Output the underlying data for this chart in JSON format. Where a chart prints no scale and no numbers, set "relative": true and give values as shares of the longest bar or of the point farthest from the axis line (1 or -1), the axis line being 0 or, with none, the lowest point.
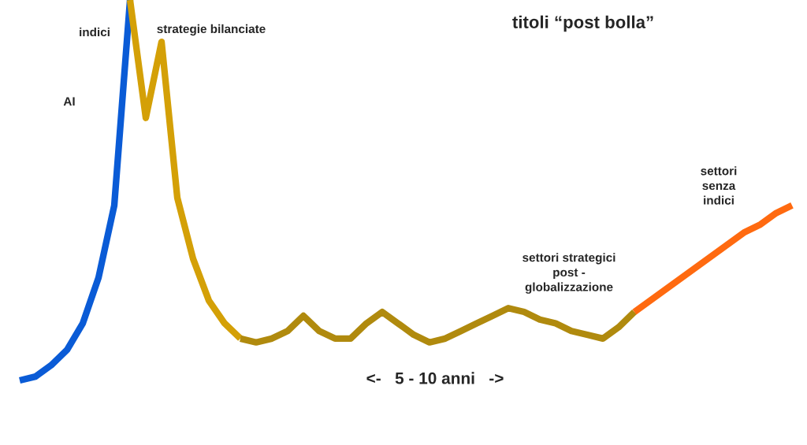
{
  "chart_data": {
    "type": "line",
    "relative": true,
    "legend": false,
    "grid": false,
    "marker": "none",
    "line_style": "solid",
    "categories": [
      null,
      null,
      null,
      null,
      null,
      null,
      null,
      null,
      null,
      null,
      null,
      null,
      null,
      null,
      null,
      null,
      null,
      null,
      null,
      null,
      null,
      null,
      null,
      null,
      null,
      null,
      null,
      null,
      null,
      null,
      null,
      null,
      null,
      null,
      null,
      null,
      null,
      null,
      null,
      null,
      null,
      null,
      null,
      null,
      null,
      null,
      null,
      null,
      null,
      null
    ],
    "series": [
      {
        "color": "#0a5bd6",
        "values": [
          0,
          0.01,
          0.04,
          0.08,
          0.15,
          0.27,
          0.46,
          1,
          null,
          null,
          null,
          null,
          null,
          null,
          null,
          null,
          null,
          null,
          null,
          null,
          null,
          null,
          null,
          null,
          null,
          null,
          null,
          null,
          null,
          null,
          null,
          null,
          null,
          null,
          null,
          null,
          null,
          null,
          null,
          null,
          null,
          null,
          null,
          null,
          null,
          null,
          null,
          null,
          null,
          null
        ]
      },
      {
        "color": "#d4a007",
        "values": [
          null,
          null,
          null,
          null,
          null,
          null,
          null,
          1,
          0.69,
          0.89,
          0.48,
          0.32,
          0.21,
          0.15,
          0.11,
          null,
          null,
          null,
          null,
          null,
          null,
          null,
          null,
          null,
          null,
          null,
          null,
          null,
          null,
          null,
          null,
          null,
          null,
          null,
          null,
          null,
          null,
          null,
          null,
          null,
          null,
          null,
          null,
          null,
          null,
          null,
          null,
          null,
          null,
          null
        ]
      },
      {
        "color": "#b08a0e",
        "values": [
          null,
          null,
          null,
          null,
          null,
          null,
          null,
          null,
          null,
          null,
          null,
          null,
          null,
          null,
          0.11,
          0.1,
          0.11,
          0.13,
          0.17,
          0.13,
          0.11,
          0.11,
          0.15,
          0.18,
          0.15,
          0.12,
          0.1,
          0.11,
          0.13,
          0.15,
          0.17,
          0.19,
          0.18,
          0.16,
          0.15,
          0.13,
          0.12,
          0.11,
          0.14,
          0.18,
          null,
          null,
          null,
          null,
          null,
          null,
          null,
          null,
          null,
          null
        ]
      },
      {
        "color": "#ff6a10",
        "values": [
          null,
          null,
          null,
          null,
          null,
          null,
          null,
          null,
          null,
          null,
          null,
          null,
          null,
          null,
          null,
          null,
          null,
          null,
          null,
          null,
          null,
          null,
          null,
          null,
          null,
          null,
          null,
          null,
          null,
          null,
          null,
          null,
          null,
          null,
          null,
          null,
          null,
          null,
          null,
          0.18,
          0.21,
          0.24,
          0.27,
          0.3,
          0.33,
          0.36,
          0.39,
          0.41,
          0.44,
          0.46
        ]
      }
    ],
    "annotations": [
      "titoli “post bolla”",
      "indici",
      "strategie bilanciate",
      "AI",
      "settori\nsenza\nindici",
      "settori strategici\npost -\nglobalizzazione",
      "<-   5 - 10 anni   ->"
    ]
  }
}
